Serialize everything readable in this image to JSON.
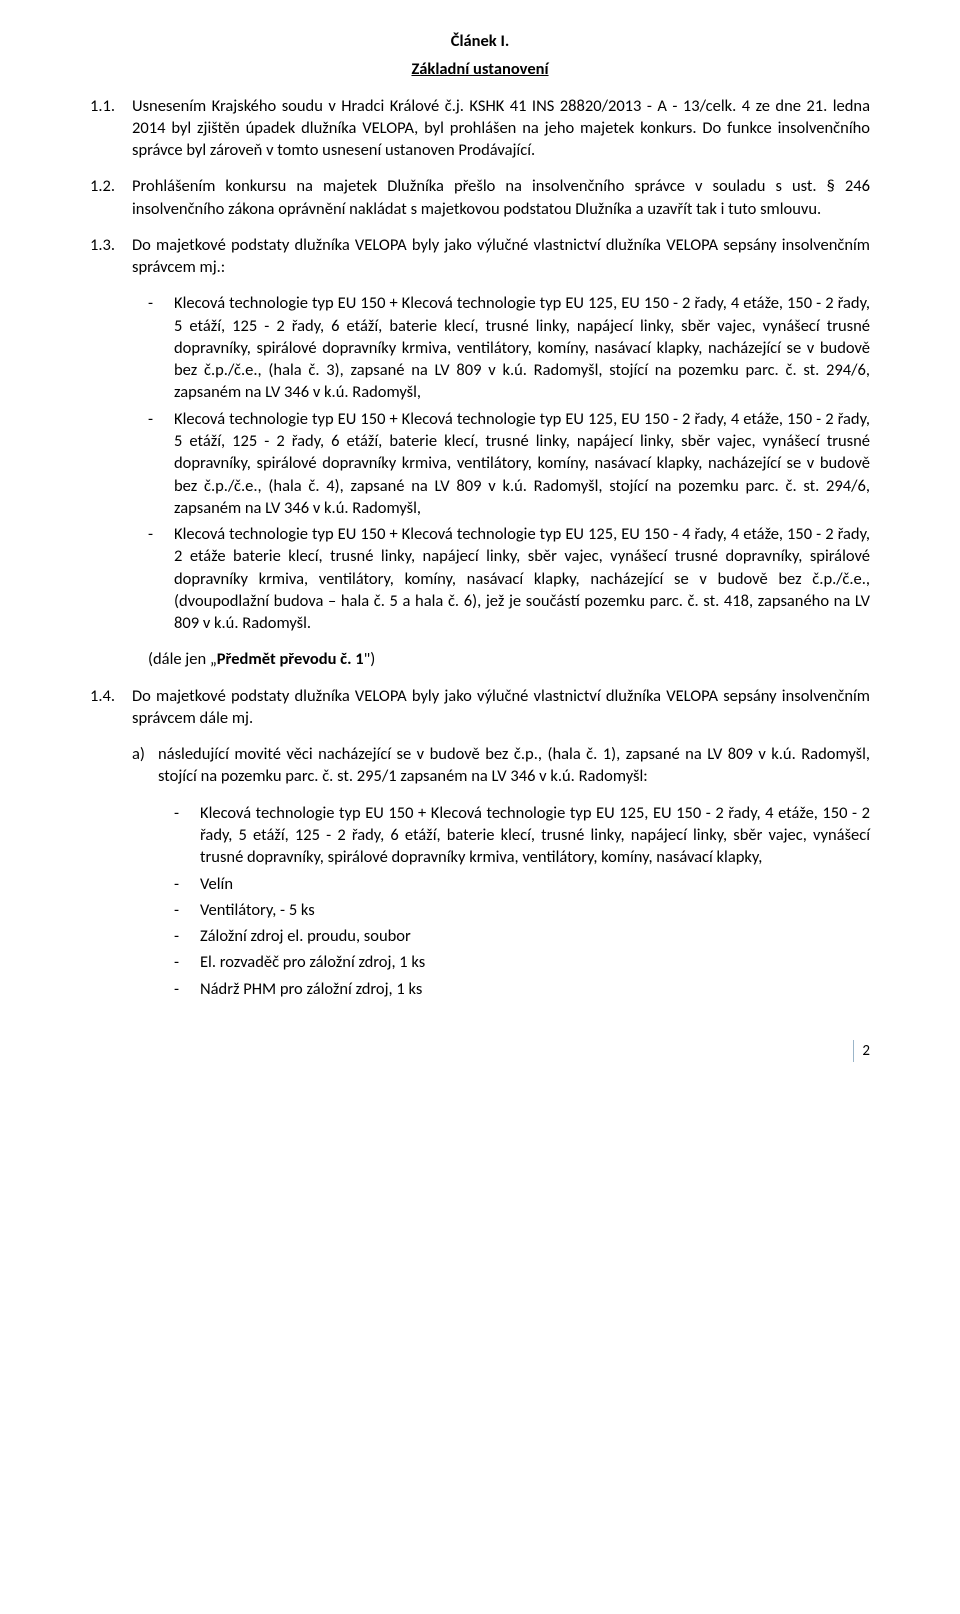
{
  "article": {
    "number": "Článek I.",
    "title": "Základní ustanovení"
  },
  "p11": {
    "num": "1.1.",
    "text": "Usnesením Krajského soudu v Hradci Králové č.j. KSHK 41 INS 28820/2013 - A - 13/celk. 4 ze dne 21. ledna 2014 byl zjištěn úpadek dlužníka VELOPA, byl prohlášen na jeho majetek konkurs. Do funkce insolvenčního správce byl zároveň v tomto usnesení ustanoven Prodávající."
  },
  "p12": {
    "num": "1.2.",
    "text": "Prohlášením konkursu na majetek Dlužníka přešlo na insolvenčního správce v souladu s ust. § 246 insolvenčního zákona oprávnění nakládat s majetkovou podstatou Dlužníka a uzavřít tak i tuto smlouvu."
  },
  "p13": {
    "num": "1.3.",
    "text": "Do majetkové podstaty dlužníka VELOPA byly jako výlučné vlastnictví dlužníka VELOPA sepsány insolvenčním správcem mj.:"
  },
  "b1": "Klecová technologie typ EU 150 + Klecová technologie typ EU 125, EU 150 - 2 řady, 4 etáže, 150 - 2 řady, 5 etáží, 125 - 2 řady, 6 etáží, baterie klecí, trusné linky, napájecí linky, sběr vajec, vynášecí trusné dopravníky, spirálové dopravníky krmiva, ventilátory, komíny, nasávací klapky, nacházející se v budově bez č.p./č.e., (hala č. 3), zapsané na LV 809 v k.ú. Radomyšl, stojící na pozemku parc. č. st. 294/6, zapsaném na LV 346 v k.ú. Radomyšl,",
  "b2": "Klecová technologie typ EU 150 + Klecová technologie typ EU 125, EU 150 - 2 řady, 4 etáže, 150 - 2 řady, 5 etáží, 125 - 2 řady, 6 etáží, baterie klecí, trusné linky, napájecí linky, sběr vajec, vynášecí trusné dopravníky, spirálové dopravníky krmiva, ventilátory, komíny, nasávací klapky, nacházející se v budově bez č.p./č.e., (hala č. 4), zapsané na LV 809 v k.ú. Radomyšl, stojící na pozemku parc. č. st. 294/6, zapsaném na LV 346 v k.ú. Radomyšl,",
  "b3": "Klecová technologie typ EU 150 + Klecová technologie typ EU 125, EU 150 - 4 řady, 4 etáže, 150 - 2 řady, 2 etáže baterie klecí, trusné linky, napájecí linky, sběr vajec, vynášecí trusné dopravníky, spirálové dopravníky krmiva, ventilátory, komíny, nasávací klapky, nacházející se v budově bez č.p./č.e., (dvoupodlažní budova – hala č. 5 a hala č. 6), jež je součástí pozemku parc. č. st. 418, zapsaného na LV 809 v k.ú. Radomyšl.",
  "closing13_pre": "(dále jen „",
  "closing13_bold": "Předmět převodu č. 1",
  "closing13_post": "\")",
  "p14": {
    "num": "1.4.",
    "text": "Do majetkové podstaty dlužníka VELOPA byly jako výlučné vlastnictví dlužníka VELOPA sepsány insolvenčním správcem dále mj."
  },
  "a_label": "a)",
  "a_text": "následující movité věci nacházející se v budově bez č.p., (hala č. 1), zapsané na LV 809 v k.ú. Radomyšl, stojící na pozemku parc. č. st. 295/1 zapsaném na LV 346 v k.ú. Radomyšl:",
  "sb1": "Klecová technologie typ EU 150 + Klecová technologie typ EU 125, EU 150 - 2 řady, 4 etáže, 150 - 2 řady, 5 etáží, 125 - 2 řady, 6 etáží, baterie klecí, trusné linky, napájecí linky, sběr vajec, vynášecí trusné dopravníky, spirálové dopravníky krmiva, ventilátory, komíny, nasávací klapky,",
  "sb2": "Velín",
  "sb3": "Ventilátory, - 5 ks",
  "sb4": "Záložní zdroj el. proudu, soubor",
  "sb5": "El. rozvaděč pro záložní zdroj, 1 ks",
  "sb6": "Nádrž PHM pro záložní zdroj, 1 ks",
  "dash": "-",
  "page_number": "2"
}
